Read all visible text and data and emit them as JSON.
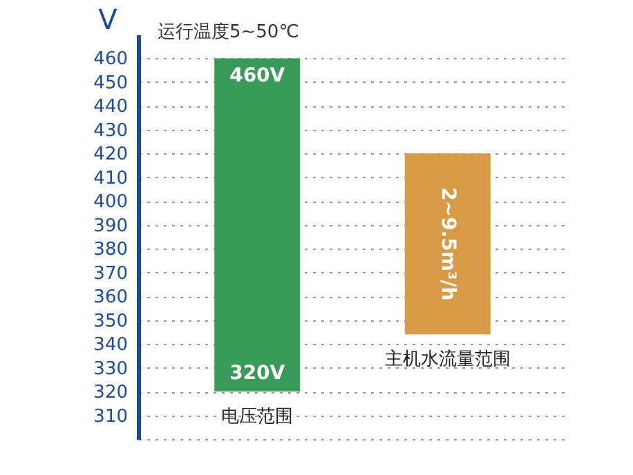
{
  "chart_data": {
    "type": "bar",
    "title": "运行温度5~50℃",
    "ylabel": "V",
    "categories": [
      "电压范围",
      "主机水流量范围"
    ],
    "base": [
      320,
      344
    ],
    "values": [
      140,
      76
    ],
    "colors": [
      "#3a9a5a",
      "#d99a45"
    ],
    "ylim": [
      300,
      470
    ],
    "yticks": [
      310,
      320,
      330,
      340,
      350,
      360,
      370,
      380,
      390,
      400,
      410,
      420,
      430,
      440,
      450,
      460
    ],
    "grid": "y",
    "annotations": [
      {
        "text": "460V",
        "x": "电压范围",
        "y": 460
      },
      {
        "text": "320V",
        "x": "电压范围",
        "y": 320
      },
      "2~9.5m³/h"
    ]
  }
}
